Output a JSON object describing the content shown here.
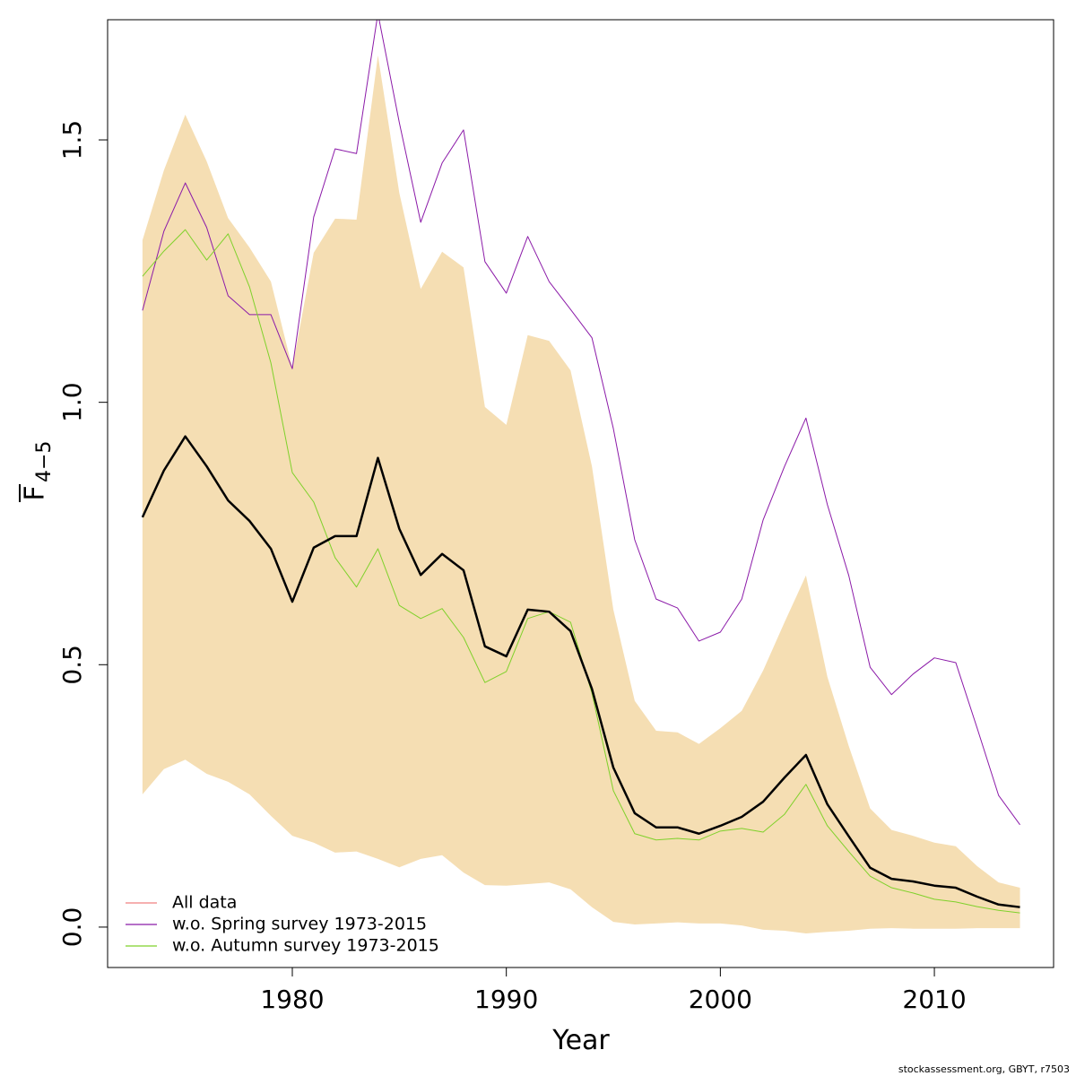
{
  "chart_data": {
    "type": "line",
    "xlabel": "Year",
    "ylabel": {
      "main": "F",
      "sub": "4−5"
    },
    "footer": "stockassessment.org, GBYT, r7503",
    "x": [
      1973,
      1974,
      1975,
      1976,
      1977,
      1978,
      1979,
      1980,
      1981,
      1982,
      1983,
      1984,
      1985,
      1986,
      1987,
      1988,
      1989,
      1990,
      1991,
      1992,
      1993,
      1994,
      1995,
      1996,
      1997,
      1998,
      1999,
      2000,
      2001,
      2002,
      2003,
      2004,
      2005,
      2006,
      2007,
      2008,
      2009,
      2010,
      2011,
      2012,
      2013,
      2014
    ],
    "band": {
      "color": "#f5deb3",
      "upper": [
        1.309,
        1.442,
        1.548,
        1.459,
        1.351,
        1.295,
        1.23,
        1.066,
        1.285,
        1.35,
        1.348,
        1.661,
        1.399,
        1.216,
        1.287,
        1.257,
        0.991,
        0.957,
        1.128,
        1.117,
        1.061,
        0.878,
        0.605,
        0.431,
        0.374,
        0.371,
        0.349,
        0.379,
        0.412,
        0.489,
        0.581,
        0.67,
        0.477,
        0.345,
        0.226,
        0.185,
        0.174,
        0.161,
        0.154,
        0.116,
        0.085,
        0.075
      ],
      "lower": [
        0.253,
        0.301,
        0.319,
        0.292,
        0.277,
        0.253,
        0.212,
        0.174,
        0.161,
        0.142,
        0.144,
        0.13,
        0.114,
        0.13,
        0.137,
        0.104,
        0.08,
        0.079,
        0.082,
        0.085,
        0.072,
        0.038,
        0.01,
        0.005,
        0.007,
        0.009,
        0.007,
        0.007,
        0.003,
        -0.005,
        -0.007,
        -0.012,
        -0.009,
        -0.007,
        -0.003,
        -0.002,
        -0.003,
        -0.003,
        -0.003,
        -0.002,
        -0.002,
        -0.002
      ]
    },
    "series": [
      {
        "name": "All data",
        "color": "#f08080",
        "line_color": "#000000",
        "width": 2.5,
        "values": [
          0.781,
          0.87,
          0.935,
          0.878,
          0.813,
          0.774,
          0.721,
          0.62,
          0.723,
          0.745,
          0.745,
          0.894,
          0.759,
          0.671,
          0.711,
          0.68,
          0.535,
          0.516,
          0.605,
          0.601,
          0.564,
          0.454,
          0.304,
          0.217,
          0.19,
          0.19,
          0.178,
          0.193,
          0.21,
          0.239,
          0.285,
          0.328,
          0.234,
          0.173,
          0.113,
          0.092,
          0.087,
          0.079,
          0.075,
          0.058,
          0.043,
          0.038
        ]
      },
      {
        "name": "w.o. Spring survey 1973-2015",
        "color": "#8b1aa8",
        "width": 1,
        "values": [
          1.175,
          1.326,
          1.418,
          1.333,
          1.203,
          1.167,
          1.167,
          1.064,
          1.353,
          1.483,
          1.474,
          1.741,
          1.533,
          1.343,
          1.456,
          1.519,
          1.268,
          1.208,
          1.316,
          1.23,
          1.177,
          1.123,
          0.95,
          0.738,
          0.625,
          0.608,
          0.545,
          0.562,
          0.625,
          0.776,
          0.878,
          0.97,
          0.805,
          0.67,
          0.495,
          0.443,
          0.482,
          0.513,
          0.504,
          0.379,
          0.251,
          0.195
        ]
      },
      {
        "name": "w.o. Autumn survey 1973-2015",
        "color": "#7fd12b",
        "width": 1,
        "values": [
          1.24,
          1.288,
          1.329,
          1.271,
          1.321,
          1.22,
          1.075,
          0.866,
          0.81,
          0.704,
          0.648,
          0.721,
          0.613,
          0.588,
          0.607,
          0.552,
          0.466,
          0.487,
          0.588,
          0.601,
          0.581,
          0.446,
          0.26,
          0.178,
          0.166,
          0.169,
          0.166,
          0.183,
          0.188,
          0.181,
          0.215,
          0.272,
          0.193,
          0.144,
          0.097,
          0.075,
          0.065,
          0.053,
          0.048,
          0.039,
          0.032,
          0.027
        ]
      }
    ],
    "xlim": [
      1971.37,
      2015.57
    ],
    "ylim": [
      -0.077,
      1.729
    ],
    "xticks": [
      1980,
      1990,
      2000,
      2010
    ],
    "yticks": [
      {
        "value": 0,
        "label": "0.0"
      },
      0.5,
      {
        "value": 1,
        "label": "1.0"
      },
      1.5
    ],
    "legend": "bottomleft"
  }
}
